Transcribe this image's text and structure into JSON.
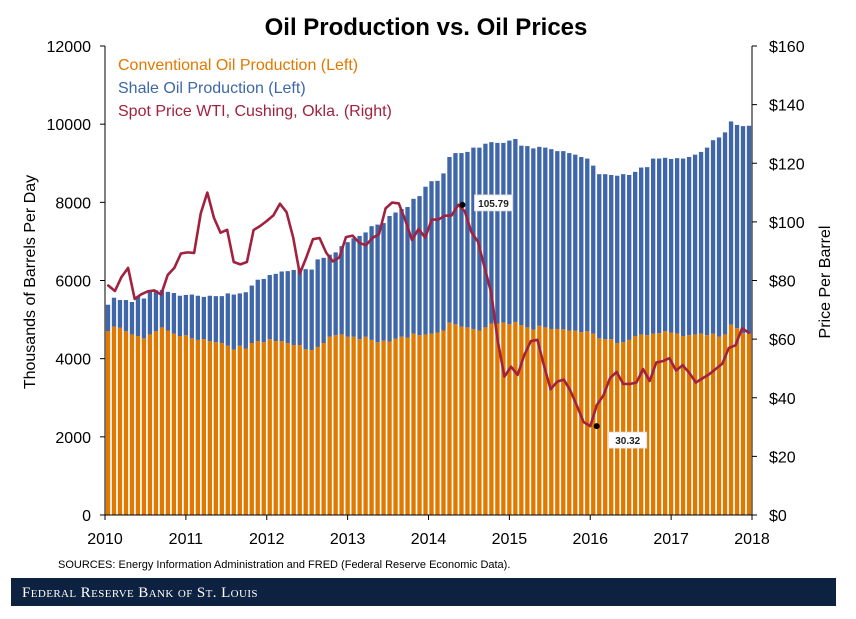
{
  "footer": {
    "brand_text": "Federal Reserve Bank of St. Louis"
  },
  "source_note": "SOURCES: Energy Information Administration and FRED (Federal Reserve Economic Data).",
  "colors": {
    "conventional": "#E07900",
    "shale": "#3E66A8",
    "price": "#A1223F",
    "footer_bg": "#0D2240"
  },
  "chart_data": {
    "type": "bar",
    "title": "Oil Production vs. Oil Prices",
    "ylabel_left": "Thousands of Barrels Per Day",
    "ylabel_right": "Price Per Barrel",
    "xlim": [
      2010,
      2018
    ],
    "ylim_left": [
      0,
      12000
    ],
    "ylim_right": [
      0,
      160
    ],
    "x_ticks": [
      "2010",
      "2011",
      "2012",
      "2013",
      "2014",
      "2015",
      "2016",
      "2017",
      "2018"
    ],
    "y_left_ticks": [
      "0",
      "2000",
      "4000",
      "6000",
      "8000",
      "10000",
      "12000"
    ],
    "y_right_ticks": [
      "$0",
      "$20",
      "$40",
      "$60",
      "$80",
      "$100",
      "$120",
      "$140",
      "$160"
    ],
    "legend_position": "top-left",
    "legend": [
      "Conventional Oil Production (Left)",
      "Shale Oil Production (Left)",
      "Spot Price WTI, Cushing, Okla. (Right)"
    ],
    "annotations": [
      {
        "label": "105.79",
        "x": 2014.42,
        "y": 105.79
      },
      {
        "label": "30.32",
        "x": 2016.08,
        "y": 30.32
      }
    ],
    "series": [
      {
        "name": "Conventional Oil Production (Left)",
        "type": "bar",
        "axis": "left",
        "values": [
          4700,
          4820,
          4790,
          4700,
          4620,
          4580,
          4520,
          4620,
          4700,
          4800,
          4720,
          4640,
          4580,
          4600,
          4520,
          4480,
          4500,
          4450,
          4420,
          4400,
          4330,
          4230,
          4330,
          4260,
          4400,
          4450,
          4420,
          4500,
          4450,
          4450,
          4400,
          4350,
          4350,
          4240,
          4220,
          4300,
          4400,
          4560,
          4600,
          4620,
          4560,
          4560,
          4500,
          4560,
          4480,
          4420,
          4460,
          4440,
          4510,
          4560,
          4540,
          4640,
          4600,
          4620,
          4640,
          4670,
          4720,
          4920,
          4880,
          4820,
          4800,
          4760,
          4720,
          4800,
          4900,
          4900,
          4920,
          4880,
          4940,
          4860,
          4800,
          4740,
          4840,
          4800,
          4760,
          4760,
          4750,
          4720,
          4720,
          4680,
          4700,
          4640,
          4520,
          4500,
          4500,
          4400,
          4420,
          4480,
          4580,
          4620,
          4600,
          4640,
          4650,
          4700,
          4670,
          4640,
          4580,
          4600,
          4620,
          4640,
          4600,
          4640,
          4560,
          4620,
          4870,
          4780,
          4650,
          4640
        ]
      },
      {
        "name": "Shale Oil Production (Left)",
        "type": "bar",
        "axis": "left",
        "values": [
          680,
          740,
          710,
          800,
          830,
          1010,
          1020,
          1130,
          1050,
          960,
          990,
          1040,
          1030,
          1030,
          1120,
          1130,
          1080,
          1160,
          1180,
          1200,
          1340,
          1410,
          1340,
          1440,
          1470,
          1570,
          1620,
          1640,
          1720,
          1780,
          1840,
          1920,
          1970,
          2050,
          2060,
          2240,
          2180,
          2100,
          2120,
          2260,
          2420,
          2520,
          2640,
          2670,
          2910,
          3010,
          3010,
          3210,
          3230,
          3270,
          3340,
          3450,
          3560,
          3780,
          3900,
          3880,
          4020,
          4240,
          4380,
          4440,
          4490,
          4640,
          4680,
          4700,
          4640,
          4620,
          4600,
          4700,
          4680,
          4590,
          4640,
          4640,
          4580,
          4600,
          4600,
          4550,
          4560,
          4540,
          4500,
          4480,
          4420,
          4300,
          4200,
          4220,
          4200,
          4280,
          4300,
          4220,
          4200,
          4270,
          4300,
          4480,
          4470,
          4440,
          4440,
          4490,
          4540,
          4560,
          4600,
          4650,
          4800,
          4950,
          5100,
          5170,
          5200,
          5200,
          5300,
          5320
        ]
      },
      {
        "name": "Spot Price WTI, Cushing, Okla. (Right)",
        "type": "line",
        "axis": "right",
        "values": [
          78.3,
          76.4,
          81.2,
          84.3,
          73.7,
          75.3,
          76.3,
          76.6,
          75.2,
          81.9,
          84.3,
          89.2,
          89.6,
          89.4,
          102.9,
          110.0,
          101.4,
          96.3,
          97.3,
          86.3,
          85.5,
          86.3,
          97.2,
          98.6,
          100.3,
          102.2,
          106.2,
          103.3,
          94.7,
          82.3,
          87.9,
          94.1,
          94.5,
          89.5,
          86.5,
          87.9,
          94.8,
          95.3,
          92.9,
          92.0,
          94.5,
          95.8,
          104.6,
          106.6,
          106.3,
          100.5,
          93.8,
          97.6,
          94.6,
          100.8,
          100.8,
          102.1,
          102.2,
          105.8,
          103.6,
          96.5,
          93.2,
          84.4,
          75.8,
          59.3,
          47.2,
          50.6,
          47.8,
          54.5,
          59.3,
          59.8,
          50.9,
          42.9,
          45.5,
          46.2,
          42.4,
          37.2,
          31.7,
          30.3,
          37.5,
          40.8,
          46.7,
          48.8,
          44.7,
          44.7,
          45.2,
          49.8,
          45.7,
          52.0,
          52.5,
          53.5,
          49.3,
          51.1,
          48.5,
          45.2,
          46.6,
          48.0,
          49.8,
          51.6,
          57.0,
          57.9,
          63.7,
          62.2
        ]
      }
    ]
  }
}
